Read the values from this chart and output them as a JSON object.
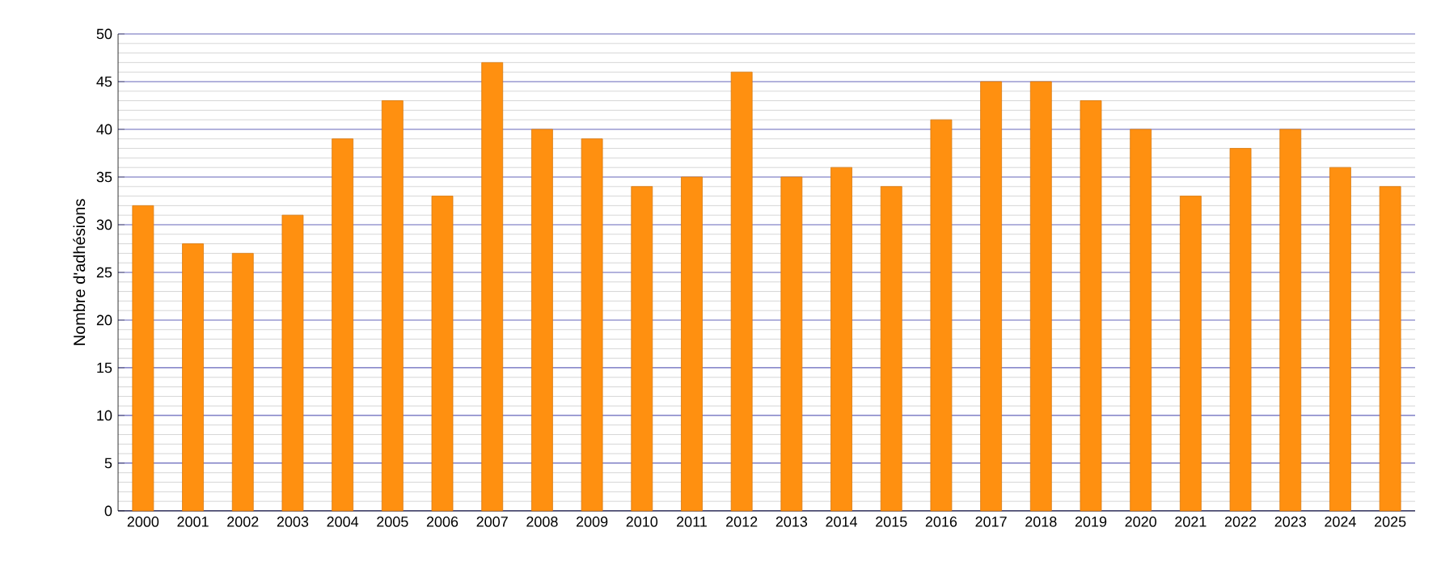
{
  "chart_data": {
    "type": "bar",
    "ylabel": "Nombre d'adhésions",
    "categories": [
      "2000",
      "2001",
      "2002",
      "2003",
      "2004",
      "2005",
      "2006",
      "2007",
      "2008",
      "2009",
      "2010",
      "2011",
      "2012",
      "2013",
      "2014",
      "2015",
      "2016",
      "2017",
      "2018",
      "2019",
      "2020",
      "2021",
      "2022",
      "2023",
      "2024",
      "2025"
    ],
    "values": [
      32,
      28,
      27,
      31,
      39,
      43,
      33,
      47,
      40,
      39,
      34,
      35,
      46,
      35,
      36,
      34,
      41,
      45,
      45,
      43,
      40,
      33,
      38,
      40,
      36,
      34
    ],
    "color": "#ff9010",
    "ylim": [
      0,
      50
    ],
    "yticks": [
      0,
      5,
      10,
      15,
      20,
      25,
      30,
      35,
      40,
      45,
      50
    ],
    "grid": true
  }
}
